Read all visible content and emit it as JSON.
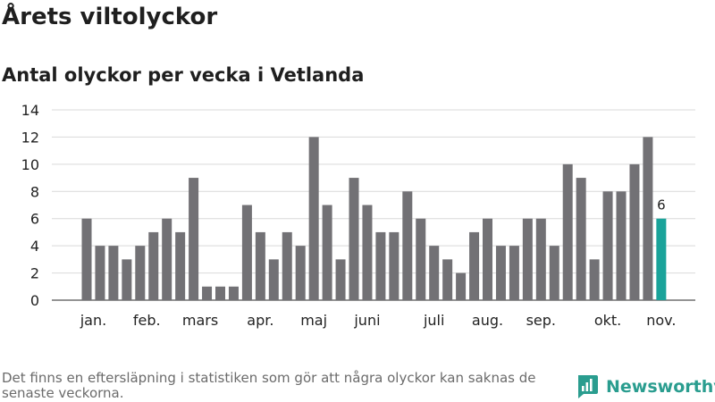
{
  "colors": {
    "bar": "#727175",
    "highlight": "#1aa39a",
    "grid": "#d9d9d9",
    "brand": "#2a9d8f"
  },
  "chart_data": {
    "type": "bar",
    "title": "Årets viltolyckor",
    "subtitle": "Antal olyckor per vecka i Vetlanda",
    "xlabel": "",
    "ylabel": "",
    "ylim": [
      0,
      14
    ],
    "yticks": [
      0,
      2,
      4,
      6,
      8,
      10,
      12,
      14
    ],
    "grid": true,
    "legend": "none",
    "weeks": [
      1,
      2,
      3,
      4,
      5,
      6,
      7,
      8,
      9,
      10,
      11,
      12,
      13,
      14,
      15,
      16,
      17,
      18,
      19,
      20,
      21,
      22,
      23,
      24,
      25,
      26,
      27,
      28,
      29,
      30,
      31,
      32,
      33,
      34,
      35,
      36,
      37,
      38,
      39,
      40,
      41,
      42,
      43,
      44
    ],
    "values": [
      6,
      4,
      4,
      3,
      4,
      5,
      6,
      5,
      9,
      1,
      1,
      1,
      7,
      5,
      3,
      5,
      4,
      12,
      7,
      3,
      9,
      7,
      5,
      5,
      8,
      6,
      4,
      3,
      2,
      5,
      6,
      4,
      4,
      6,
      6,
      4,
      10,
      9,
      3,
      8,
      8,
      10,
      12,
      6
    ],
    "highlight_week": 44,
    "highlight_label": "6",
    "month_labels": [
      {
        "label": "jan.",
        "week": 1.5
      },
      {
        "label": "feb.",
        "week": 5.5
      },
      {
        "label": "mars",
        "week": 9.5
      },
      {
        "label": "apr.",
        "week": 14
      },
      {
        "label": "maj",
        "week": 18
      },
      {
        "label": "juni",
        "week": 22
      },
      {
        "label": "juli",
        "week": 27
      },
      {
        "label": "aug.",
        "week": 31
      },
      {
        "label": "sep.",
        "week": 35
      },
      {
        "label": "okt.",
        "week": 40
      },
      {
        "label": "nov.",
        "week": 44
      }
    ]
  },
  "footnote": "Det finns en eftersläpning i statistiken som gör att några olyckor kan saknas de senaste veckorna.",
  "brand": {
    "name": "Newsworthy",
    "icon": "bar-chart-logo-icon"
  }
}
